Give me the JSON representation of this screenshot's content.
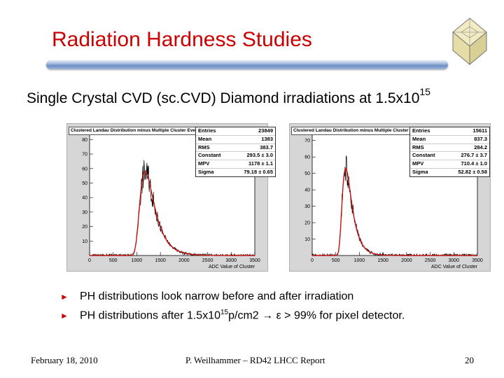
{
  "slide": {
    "title": "Radiation Hardness Studies",
    "subtitle_main": "Single Crystal CVD (sc.CVD) Diamond irradiations at 1.5x10",
    "subtitle_exp": "15",
    "bullets": [
      {
        "marker": "►",
        "text": "PH distributions look narrow before and after irradiation"
      },
      {
        "marker": "►",
        "pre": "PH distributions after 1.5x10",
        "exp": "15",
        "post": "p/cm2 → ε > 99% for pixel detector."
      }
    ],
    "footer": {
      "date": "February 18, 2010",
      "center": "P. Weilhammer – RD42 LHCC Report",
      "page": "20"
    }
  },
  "chart_data": [
    {
      "type": "histogram",
      "title": "Clustered Landau Distribution minus Multiple Cluster Events",
      "xlabel": "ADC Value of Cluster",
      "ylabel": "",
      "xlim": [
        0,
        3500
      ],
      "ylim": [
        0,
        85
      ],
      "x_ticks": [
        "0",
        "500",
        "1000",
        "1500",
        "2000",
        "2500",
        "3000",
        "3500"
      ],
      "y_ticks": [
        "10",
        "20",
        "30",
        "40",
        "50",
        "60",
        "70",
        "80"
      ],
      "peak_x": 1178,
      "peak_y": 58,
      "fit_sigma": 79.18,
      "stats": [
        {
          "label": "Entries",
          "value": "23849"
        },
        {
          "label": "Mean",
          "value": "1383"
        },
        {
          "label": "RMS",
          "value": "383.7"
        },
        {
          "label": "Constant",
          "value": "293.5 ± 3.0"
        },
        {
          "label": "MPV",
          "value": "1178 ± 1.1"
        },
        {
          "label": "Sigma",
          "value": "79.18 ± 0.65"
        }
      ]
    },
    {
      "type": "histogram",
      "title": "Clustered Landau Distribution minus Multiple Cluster Events",
      "xlabel": "ADC Value of Cluster",
      "ylabel": "",
      "xlim": [
        0,
        3500
      ],
      "ylim": [
        0,
        75
      ],
      "x_ticks": [
        "0",
        "500",
        "1000",
        "1500",
        "2000",
        "2500",
        "3000",
        "3500"
      ],
      "y_ticks": [
        "10",
        "20",
        "30",
        "40",
        "50",
        "60",
        "70"
      ],
      "peak_x": 710,
      "peak_y": 53,
      "fit_sigma": 52.82,
      "stats": [
        {
          "label": "Entries",
          "value": "15611"
        },
        {
          "label": "Mean",
          "value": "837.3"
        },
        {
          "label": "RMS",
          "value": "284.2"
        },
        {
          "label": "Constant",
          "value": "276.7 ± 3.7"
        },
        {
          "label": "MPV",
          "value": "710.4 ± 1.0"
        },
        {
          "label": "Sigma",
          "value": "52.82 ± 0.58"
        }
      ]
    }
  ]
}
